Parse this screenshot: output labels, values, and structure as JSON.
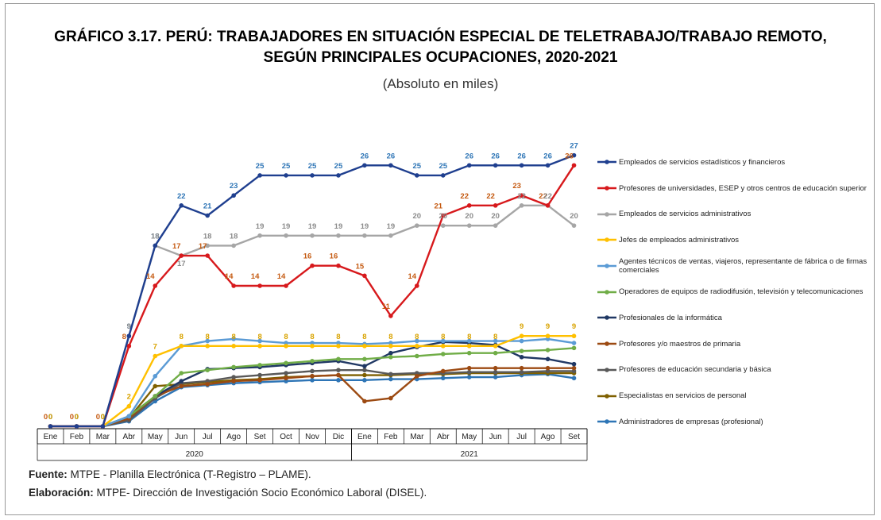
{
  "chart_data": {
    "type": "line",
    "title": "GRÁFICO 3.17. PERÚ: TRABAJADORES EN SITUACIÓN ESPECIAL DE TELETRABAJO/TRABAJO REMOTO,",
    "title_line2": "SEGÚN PRINCIPALES OCUPACIONES, 2020-2021",
    "subtitle": "(Absoluto en miles)",
    "categories": [
      "Ene",
      "Feb",
      "Mar",
      "Abr",
      "May",
      "Jun",
      "Jul",
      "Ago",
      "Set",
      "Oct",
      "Nov",
      "Dic",
      "Ene",
      "Feb",
      "Mar",
      "Abr",
      "May",
      "Jun",
      "Jul",
      "Ago",
      "Set"
    ],
    "groups": [
      {
        "label": "2020",
        "span": 12
      },
      {
        "label": "2021",
        "span": 9
      }
    ],
    "ylim": [
      0,
      28
    ],
    "series": [
      {
        "name": "Empleados de servicios estadísticos y financieros",
        "color": "#1f3f8f",
        "label_color": "#2e75b6",
        "data_labels": true,
        "values": [
          0,
          0,
          0,
          9,
          18,
          22,
          21,
          23,
          25,
          25,
          25,
          25,
          26,
          26,
          25,
          25,
          26,
          26,
          26,
          26,
          27
        ]
      },
      {
        "name": "Profesores de universidades, ESEP y otros centros de educación superior",
        "color": "#d7191c",
        "label_color": "#c55a11",
        "data_labels": true,
        "values": [
          0,
          0,
          0,
          8,
          14,
          17,
          17,
          14,
          14,
          14,
          16,
          16,
          15,
          11,
          14,
          21,
          22,
          22,
          23,
          22,
          26
        ]
      },
      {
        "name": "Empleados de servicios administrativos",
        "color": "#a6a6a6",
        "label_color": "#8c8c8c",
        "data_labels": true,
        "values": [
          0,
          0,
          0,
          9,
          18,
          17,
          18,
          18,
          19,
          19,
          19,
          19,
          19,
          19,
          20,
          20,
          20,
          20,
          22,
          22,
          20
        ]
      },
      {
        "name": "Jefes de empleados administrativos",
        "color": "#ffc000",
        "label_color": "#d9a300",
        "data_labels": true,
        "values": [
          0,
          0,
          0,
          2,
          7,
          8,
          8,
          8,
          8,
          8,
          8,
          8,
          8,
          8,
          8,
          8,
          8,
          8,
          9,
          9,
          9
        ]
      },
      {
        "name": "Agentes técnicos de ventas, viajeros, representante de fábrica o de firmas comerciales",
        "color": "#5b9bd5",
        "values": [
          0,
          0,
          0,
          1,
          5,
          8,
          8.5,
          8.7,
          8.5,
          8.3,
          8.3,
          8.3,
          8.2,
          8.3,
          8.5,
          8.5,
          8.5,
          8.5,
          8.5,
          8.7,
          8.3
        ]
      },
      {
        "name": "Operadores de equipos de radiodifusión, televisión y telecomunicaciones",
        "color": "#70ad47",
        "values": [
          0,
          0,
          0,
          1,
          3,
          5.3,
          5.6,
          5.9,
          6.1,
          6.3,
          6.5,
          6.7,
          6.7,
          6.9,
          7,
          7.2,
          7.3,
          7.3,
          7.5,
          7.6,
          7.8
        ]
      },
      {
        "name": "Profesionales de la informática",
        "color": "#203864",
        "values": [
          0,
          0,
          0,
          1,
          3,
          4.5,
          5.7,
          5.8,
          5.9,
          6.1,
          6.3,
          6.5,
          6,
          7.3,
          7.9,
          8.4,
          8.3,
          8.1,
          6.9,
          6.7,
          6.2
        ]
      },
      {
        "name": "Profesores y/o maestros de primaria",
        "color": "#9c4a12",
        "values": [
          0,
          0,
          0,
          0.8,
          3,
          4,
          4.2,
          4.5,
          4.6,
          4.8,
          5,
          5.1,
          2.5,
          2.8,
          5,
          5.5,
          5.8,
          5.8,
          5.8,
          5.8,
          5.8
        ]
      },
      {
        "name": "Profesores de educación secundaria y básica",
        "color": "#595959",
        "values": [
          0,
          0,
          0,
          0.6,
          2.8,
          4.3,
          4.5,
          4.9,
          5.1,
          5.3,
          5.5,
          5.6,
          5.6,
          5.2,
          5.3,
          5.3,
          5.4,
          5.4,
          5.4,
          5.5,
          5.5
        ]
      },
      {
        "name": "Especialistas en servicios de personal",
        "color": "#7f6000",
        "values": [
          0,
          0,
          0,
          0.8,
          4,
          4.2,
          4.4,
          4.6,
          4.7,
          4.9,
          5,
          5.1,
          5.1,
          5.1,
          5.2,
          5.2,
          5.3,
          5.3,
          5.3,
          5.3,
          5.3
        ]
      },
      {
        "name": "Administradores de empresas (profesional)",
        "color": "#2e75b6",
        "values": [
          0,
          0,
          0,
          0.5,
          2.5,
          3.9,
          4.1,
          4.3,
          4.4,
          4.5,
          4.6,
          4.6,
          4.6,
          4.7,
          4.7,
          4.8,
          4.9,
          4.9,
          5.1,
          5.2,
          4.8
        ]
      }
    ],
    "source_label": "Fuente:",
    "source_text": " MTPE - Planilla Electrónica (T-Registro – PLAME).",
    "credit_label": "Elaboración:",
    "credit_text": " MTPE- Dirección de Investigación Socio Económico Laboral (DISEL)."
  }
}
